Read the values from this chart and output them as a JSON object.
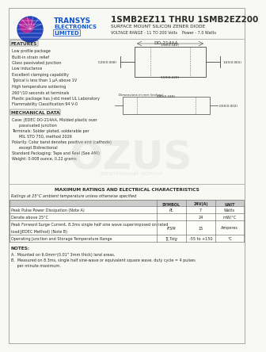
{
  "title_main": "1SMB2EZ11 THRU 1SMB2EZ200",
  "title_sub1": "SURFACE MOUNT SILICON ZENER DIODE",
  "title_sub2": "VOLTAGE RANGE - 11 TO 200 Volts",
  "title_sub2b": "Power - 7.0 Watts",
  "company_name1": "TRANSYS",
  "company_name2": "ELECTRONICS",
  "company_name3": "LIMITED",
  "features_title": "FEATURES",
  "features": [
    "Low profile package",
    "Built-in strain relief",
    "Glass passivated junction",
    "Low inductance",
    "Excellent clamping capability",
    "Typical I₄ less than 1 μA above 1V",
    "High temperature soldering",
    "260°/10 seconds at terminals",
    "Plastic package has J-std meet UL Laboratory",
    "Flammability Classification 94 V-0"
  ],
  "mech_title": "MECHANICAL DATA",
  "mech_data": [
    "Case: JEDEC DO-214AA, Molded plastic over",
    "      passivated junction",
    "Terminals: Solder plated, solderable per",
    "      MIL STD 750, method 2026",
    "Polarity: Color band denotes positive end (cathode)",
    "      except Bidirectional",
    "Standard Packaging: Tape and Reel (See AMI)",
    "Weight: 0.008 ounce, 0.22 grams"
  ],
  "package_label": "DO-214AA",
  "table_title": "MAXIMUM RATINGS AND ELECTRICAL CHARACTERISTICS",
  "table_note": "Ratings at 25°C ambient temperature unless otherwise specified",
  "bg_color": "#f8f8f5",
  "text_color": "#2a2a2a",
  "table_header_bg": "#cccccc",
  "table_line_color": "#777777",
  "border_color": "#999999",
  "logo_globe_color1": "#2244bb",
  "logo_globe_color2": "#cc2299",
  "logo_text_color": "#1155cc",
  "watermark_color": "#d0d0d0"
}
